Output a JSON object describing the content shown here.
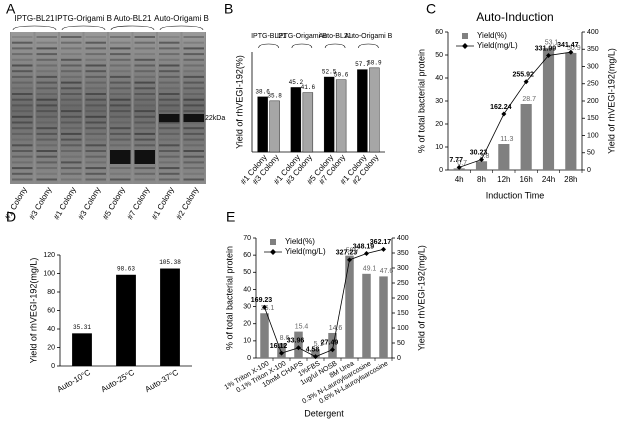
{
  "gel": {
    "panel": "A",
    "groups": [
      "IPTG-BL21",
      "IPTG-Origami B",
      "Auto-BL21",
      "Auto-Origami B"
    ],
    "lanes": [
      "#1 Colony",
      "#3 Colony",
      "#1 Colony",
      "#3 Colony",
      "#5 Colony",
      "#7 Colony",
      "#1 Colony",
      "#2 Colony"
    ],
    "marker": "22kDa"
  },
  "chart_data": [
    {
      "panel": "B",
      "type": "grouped",
      "ylabel": "Yield of rhVEGI-192(%)",
      "categories": [
        "IPTG-BL21",
        "IPTG-Origami B",
        "Auto-BL21",
        "Auto-Origami B"
      ],
      "series": [
        {
          "color": "#000000",
          "values": [
            38.6,
            45.2,
            52.5,
            57.7
          ],
          "bar_labels": [
            "#1 Colony",
            "#1 Colony",
            "#5 Colony",
            "#1 Colony"
          ]
        },
        {
          "color": "#a6a6a6",
          "values": [
            35.8,
            41.6,
            50.6,
            58.9
          ],
          "bar_labels": [
            "#3 Colony",
            "#3 Colony",
            "#7 Colony",
            "#2 Colony"
          ]
        }
      ],
      "ylim": [
        0,
        70
      ]
    },
    {
      "panel": "C",
      "type": "combo",
      "title": "Auto-Induction",
      "xlabel": "Induction Time",
      "ylabel": "% of total bacterial protein",
      "y2label": "Yield of rhVEGI-192(mg/L)",
      "categories": [
        "4h",
        "8h",
        "12h",
        "16h",
        "24h",
        "28h"
      ],
      "series": [
        {
          "name": "Yield(%)",
          "kind": "bar",
          "color": "#808080",
          "values": [
            0.7,
            3.8,
            11.3,
            28.7,
            53.1,
            50.9
          ]
        },
        {
          "name": "Yield(mg/L)",
          "kind": "line",
          "axis": "y2",
          "color": "#000000",
          "values": [
            7.77,
            30.23,
            162.24,
            255.92,
            331.99,
            341.47
          ]
        }
      ],
      "ylim": [
        0,
        60
      ],
      "yticks": [
        0,
        10,
        20,
        30,
        40,
        50,
        60
      ],
      "y2lim": [
        0,
        400
      ],
      "y2ticks": [
        0,
        50,
        100,
        150,
        200,
        250,
        300,
        350,
        400
      ],
      "legend": "upper-left",
      "rotate_labels": false
    },
    {
      "panel": "D",
      "type": "bar",
      "ylabel": "Yield of rhVEGI-192(mg/L)",
      "categories": [
        "Auto-10°C",
        "Auto-25°C",
        "Auto-37°C"
      ],
      "values": [
        35.31,
        98.63,
        105.38
      ],
      "color": "#000000",
      "ylim": [
        0,
        120
      ],
      "yticks": [
        0,
        20,
        40,
        60,
        80,
        100,
        120
      ]
    },
    {
      "panel": "E",
      "type": "combo",
      "xlabel": "Detergent",
      "ylabel": "% of total bacterial protein",
      "y2label": "Yield of rhVEGI-192(mg/L)",
      "categories": [
        "1% Triton X-100",
        "0.1% Triton X-100",
        "10mM CHAPS",
        "1%FBS",
        "1ug/ul NOSB",
        "8M Urea",
        "0.3% N-Lauroylsarcosine",
        "0.6% N-Lauroylsarcosine"
      ],
      "series": [
        {
          "name": "Yield(%)",
          "kind": "bar",
          "color": "#808080",
          "values": [
            26.1,
            8.6,
            15.4,
            5.1,
            14.6,
            59.7,
            49.1,
            47.6
          ]
        },
        {
          "name": "Yield(mg/L)",
          "kind": "line",
          "axis": "y2",
          "color": "#000000",
          "values": [
            169.23,
            16.12,
            33.96,
            4.58,
            27.49,
            327.23,
            348.19,
            362.17
          ]
        }
      ],
      "ylim": [
        0,
        70
      ],
      "yticks": [
        0,
        10,
        20,
        30,
        40,
        50,
        60,
        70
      ],
      "y2lim": [
        0,
        400
      ],
      "y2ticks": [
        0,
        50,
        100,
        150,
        200,
        250,
        300,
        350,
        400
      ],
      "legend": "upper-left",
      "rotate_labels": true
    }
  ]
}
